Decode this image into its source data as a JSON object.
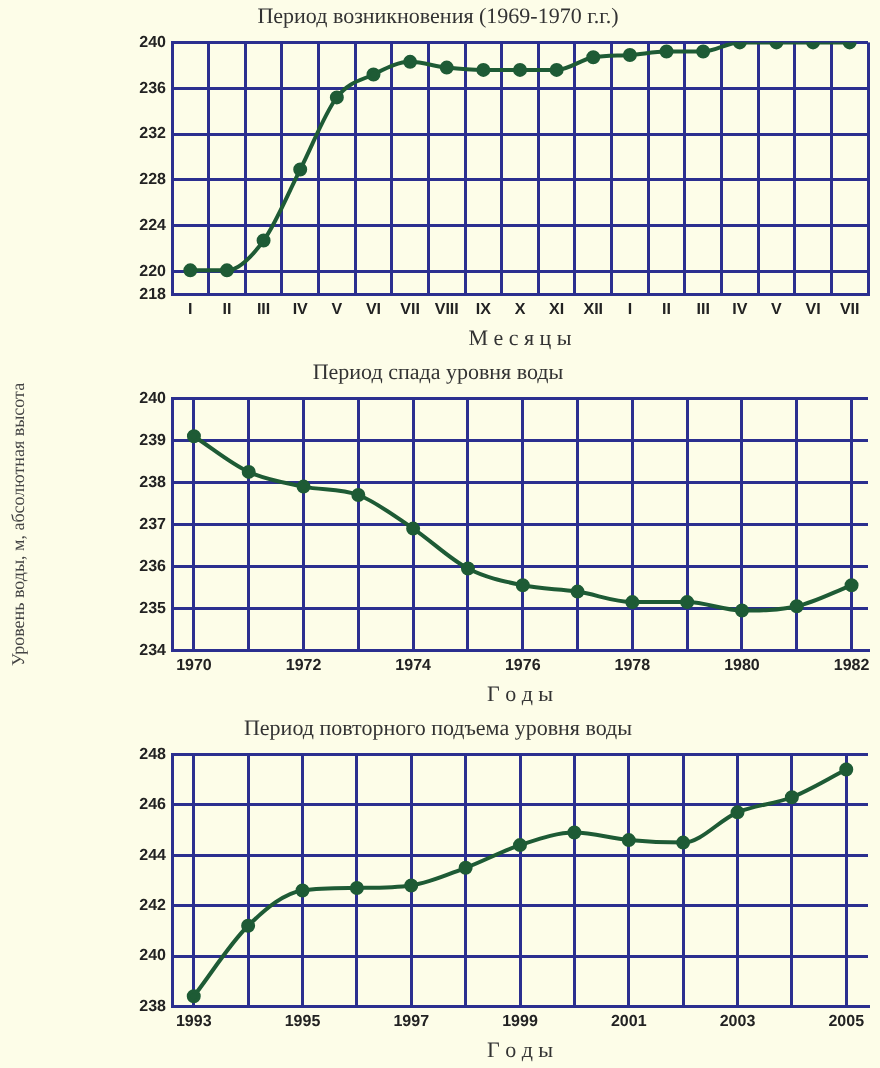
{
  "chart_data": [
    {
      "type": "line",
      "title": "Период возникновения (1969-1970 г.г.)",
      "xlabel": "М е с я ц ы",
      "categories": [
        "I",
        "II",
        "III",
        "IV",
        "V",
        "VI",
        "VII",
        "VIII",
        "IX",
        "X",
        "XI",
        "XII",
        "I",
        "II",
        "III",
        "IV",
        "V",
        "VI",
        "VII"
      ],
      "series": [
        {
          "color": "#1e5b35",
          "values": [
            220.1,
            220.1,
            222.7,
            228.9,
            235.2,
            237.2,
            238.3,
            237.8,
            237.6,
            237.6,
            237.6,
            238.7,
            238.9,
            239.2,
            239.2,
            240,
            240,
            240,
            240
          ]
        }
      ],
      "ylim": [
        218,
        240
      ],
      "yticks": [
        218,
        220,
        224,
        228,
        232,
        236,
        240
      ],
      "grid": true,
      "legend": false,
      "marker": "circle",
      "line_style": "solid"
    },
    {
      "type": "line",
      "title": "Период спада уровня воды",
      "xlabel": "Г о д ы",
      "ylabel": "Уровень воды, м, абсолютная высота",
      "x": [
        1970,
        1971,
        1972,
        1973,
        1974,
        1975,
        1976,
        1977,
        1978,
        1979,
        1980,
        1981,
        1982
      ],
      "series": [
        {
          "color": "#1e5b35",
          "values": [
            239.1,
            238.25,
            237.9,
            237.7,
            236.9,
            235.95,
            235.55,
            235.4,
            235.15,
            235.15,
            234.95,
            235.05,
            235.55
          ]
        }
      ],
      "xlim": [
        1969.6,
        1982.3
      ],
      "xticks": [
        1970,
        {
          "value": 1971,
          "label": null
        },
        1972,
        {
          "value": 1973,
          "label": null
        },
        1974,
        {
          "value": 1975,
          "label": null
        },
        1976,
        {
          "value": 1977,
          "label": null
        },
        1978,
        {
          "value": 1979,
          "label": null
        },
        1980,
        {
          "value": 1981,
          "label": null
        },
        1982
      ],
      "ylim": [
        234,
        240
      ],
      "yticks": [
        234,
        235,
        236,
        237,
        238,
        239,
        240
      ],
      "grid": true,
      "legend": false,
      "marker": "circle",
      "line_style": "solid"
    },
    {
      "type": "line",
      "title": "Период повторного подъема уровня воды",
      "xlabel": "Г о д ы",
      "x": [
        1993,
        1994,
        1995,
        1996,
        1997,
        1998,
        1999,
        2000,
        2001,
        2002,
        2003,
        2004,
        2005
      ],
      "series": [
        {
          "color": "#1e5b35",
          "values": [
            238.4,
            241.2,
            242.6,
            242.7,
            242.8,
            243.5,
            244.4,
            244.9,
            244.6,
            244.5,
            245.7,
            246.3,
            247.4
          ]
        }
      ],
      "xlim": [
        1992.6,
        2005.4
      ],
      "xticks": [
        1993,
        {
          "value": 1994,
          "label": null
        },
        1995,
        {
          "value": 1996,
          "label": null
        },
        1997,
        {
          "value": 1998,
          "label": null
        },
        1999,
        {
          "value": 2000,
          "label": null
        },
        2001,
        {
          "value": 2002,
          "label": null
        },
        2003,
        {
          "value": 2004,
          "label": null
        },
        2005
      ],
      "ylim": [
        238,
        248
      ],
      "yticks": [
        238,
        240,
        242,
        244,
        246,
        248
      ],
      "grid": true,
      "legend": false,
      "marker": "circle",
      "line_style": "solid"
    }
  ]
}
